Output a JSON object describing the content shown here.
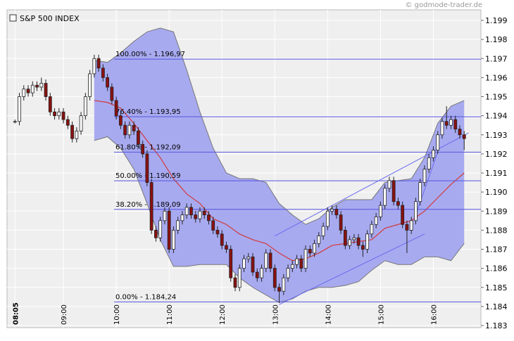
{
  "chart_data": {
    "type": "candlestick",
    "title": "S&P 500 INDEX",
    "watermark": "© godmode-trader.de",
    "ylim": [
      1.183,
      1.199
    ],
    "yticks": [
      1.183,
      1.184,
      1.185,
      1.186,
      1.187,
      1.188,
      1.189,
      {
        "value": 1.19,
        "label": "1.190"
      },
      1.191,
      1.192,
      1.193,
      1.194,
      1.195,
      1.196,
      1.197,
      1.198,
      1.199
    ],
    "xlim": [
      "07:56",
      "16:54"
    ],
    "xticks": [
      "08:05",
      "09:00",
      "10:00",
      "11:00",
      "12:00",
      "13:00",
      "14:00",
      "15:00",
      "16:00"
    ],
    "grid": true,
    "colors": {
      "up": "#ffffff",
      "down": "#8b1010",
      "band": "#a8aaf0",
      "ma": "#d03a3a",
      "fib": "#5555dd",
      "trend": "#6a6aee"
    },
    "x": [
      "08:05",
      "08:10",
      "08:15",
      "08:20",
      "08:25",
      "08:30",
      "08:35",
      "08:40",
      "08:45",
      "08:50",
      "08:55",
      "09:00",
      "09:05",
      "09:10",
      "09:15",
      "09:20",
      "09:25",
      "09:30",
      "09:35",
      "09:40",
      "09:45",
      "09:50",
      "09:55",
      "10:00",
      "10:05",
      "10:10",
      "10:15",
      "10:20",
      "10:25",
      "10:30",
      "10:35",
      "10:40",
      "10:45",
      "10:50",
      "10:55",
      "11:00",
      "11:05",
      "11:10",
      "11:15",
      "11:20",
      "11:25",
      "11:30",
      "11:35",
      "11:40",
      "11:45",
      "11:50",
      "11:55",
      "12:00",
      "12:05",
      "12:10",
      "12:15",
      "12:20",
      "12:25",
      "12:30",
      "12:35",
      "12:40",
      "12:45",
      "12:50",
      "12:55",
      "13:00",
      "13:05",
      "13:10",
      "13:15",
      "13:20",
      "13:25",
      "13:30",
      "13:35",
      "13:40",
      "13:45",
      "13:50",
      "13:55",
      "14:00",
      "14:05",
      "14:10",
      "14:15",
      "14:20",
      "14:25",
      "14:30",
      "14:35",
      "14:40",
      "14:45",
      "14:50",
      "14:55",
      "15:00",
      "15:05",
      "15:10",
      "15:15",
      "15:20",
      "15:25",
      "15:30",
      "15:35",
      "15:40",
      "15:45",
      "15:50",
      "15:55",
      "16:00",
      "16:05",
      "16:10",
      "16:15",
      "16:20",
      "16:25",
      "16:30",
      "16:35"
    ],
    "ohlc": [
      [
        1.1937,
        1.1938,
        1.1936,
        1.1937
      ],
      [
        1.1937,
        1.1952,
        1.1935,
        1.195
      ],
      [
        1.195,
        1.1956,
        1.1948,
        1.1954
      ],
      [
        1.1954,
        1.1956,
        1.195,
        1.1952
      ],
      [
        1.1952,
        1.1958,
        1.195,
        1.1956
      ],
      [
        1.1956,
        1.1958,
        1.1953,
        1.1955
      ],
      [
        1.1955,
        1.196,
        1.1953,
        1.1957
      ],
      [
        1.1957,
        1.1959,
        1.1948,
        1.195
      ],
      [
        1.195,
        1.1952,
        1.194,
        1.1942
      ],
      [
        1.1942,
        1.1944,
        1.1938,
        1.194
      ],
      [
        1.194,
        1.1944,
        1.1938,
        1.1942
      ],
      [
        1.1942,
        1.1944,
        1.1936,
        1.1938
      ],
      [
        1.1938,
        1.194,
        1.1933,
        1.1935
      ],
      [
        1.1935,
        1.1937,
        1.1926,
        1.1928
      ],
      [
        1.1928,
        1.1934,
        1.1926,
        1.1932
      ],
      [
        1.1932,
        1.1942,
        1.193,
        1.194
      ],
      [
        1.194,
        1.1952,
        1.1938,
        1.195
      ],
      [
        1.195,
        1.1964,
        1.1948,
        1.1962
      ],
      [
        1.1962,
        1.1972,
        1.196,
        1.197
      ],
      [
        1.197,
        1.1972,
        1.1963,
        1.1965
      ],
      [
        1.1965,
        1.1967,
        1.1958,
        1.196
      ],
      [
        1.196,
        1.1962,
        1.1953,
        1.1955
      ],
      [
        1.1955,
        1.1957,
        1.1946,
        1.1948
      ],
      [
        1.1948,
        1.195,
        1.1938,
        1.194
      ],
      [
        1.194,
        1.1942,
        1.1933,
        1.1935
      ],
      [
        1.1935,
        1.1937,
        1.1928,
        1.193
      ],
      [
        1.193,
        1.1937,
        1.1928,
        1.1935
      ],
      [
        1.1935,
        1.1937,
        1.193,
        1.1932
      ],
      [
        1.1932,
        1.1934,
        1.1923,
        1.1925
      ],
      [
        1.1925,
        1.1927,
        1.1918,
        1.192
      ],
      [
        1.192,
        1.1922,
        1.1903,
        1.1905
      ],
      [
        1.1905,
        1.1907,
        1.1878,
        1.188
      ],
      [
        1.188,
        1.1882,
        1.1874,
        1.1876
      ],
      [
        1.1876,
        1.1887,
        1.1874,
        1.1885
      ],
      [
        1.1885,
        1.1892,
        1.1883,
        1.189
      ],
      [
        1.189,
        1.1892,
        1.1868,
        1.187
      ],
      [
        1.187,
        1.1882,
        1.1868,
        1.188
      ],
      [
        1.188,
        1.1887,
        1.1878,
        1.1885
      ],
      [
        1.1885,
        1.189,
        1.1883,
        1.1888
      ],
      [
        1.1888,
        1.1894,
        1.1886,
        1.1892
      ],
      [
        1.1892,
        1.1894,
        1.1886,
        1.1888
      ],
      [
        1.1888,
        1.189,
        1.1884,
        1.1886
      ],
      [
        1.1886,
        1.1892,
        1.1884,
        1.189
      ],
      [
        1.189,
        1.1892,
        1.1886,
        1.1888
      ],
      [
        1.1888,
        1.189,
        1.1883,
        1.1885
      ],
      [
        1.1885,
        1.1887,
        1.1878,
        1.188
      ],
      [
        1.188,
        1.1882,
        1.1876,
        1.1878
      ],
      [
        1.1878,
        1.188,
        1.187,
        1.1872
      ],
      [
        1.1872,
        1.1874,
        1.1868,
        1.187
      ],
      [
        1.187,
        1.1872,
        1.1853,
        1.1855
      ],
      [
        1.1855,
        1.1857,
        1.1848,
        1.185
      ],
      [
        1.185,
        1.1862,
        1.1848,
        1.186
      ],
      [
        1.186,
        1.1867,
        1.1858,
        1.1865
      ],
      [
        1.1865,
        1.1868,
        1.1863,
        1.1866
      ],
      [
        1.1866,
        1.1868,
        1.1856,
        1.1858
      ],
      [
        1.1858,
        1.186,
        1.1853,
        1.1855
      ],
      [
        1.1855,
        1.1862,
        1.1853,
        1.186
      ],
      [
        1.186,
        1.187,
        1.1858,
        1.1868
      ],
      [
        1.1868,
        1.187,
        1.1858,
        1.186
      ],
      [
        1.186,
        1.1862,
        1.1848,
        1.185
      ],
      [
        1.185,
        1.1852,
        1.1842,
        1.1848
      ],
      [
        1.1848,
        1.1857,
        1.1846,
        1.1855
      ],
      [
        1.1855,
        1.1862,
        1.1853,
        1.186
      ],
      [
        1.186,
        1.1864,
        1.1858,
        1.1862
      ],
      [
        1.1862,
        1.1867,
        1.186,
        1.1865
      ],
      [
        1.1865,
        1.1867,
        1.1858,
        1.186
      ],
      [
        1.186,
        1.1872,
        1.1858,
        1.187
      ],
      [
        1.187,
        1.1872,
        1.1866,
        1.1868
      ],
      [
        1.1868,
        1.1875,
        1.1866,
        1.1873
      ],
      [
        1.1873,
        1.1879,
        1.1871,
        1.1877
      ],
      [
        1.1877,
        1.1884,
        1.1875,
        1.1882
      ],
      [
        1.1882,
        1.1892,
        1.188,
        1.189
      ],
      [
        1.189,
        1.1893,
        1.1888,
        1.1891
      ],
      [
        1.1891,
        1.1893,
        1.1886,
        1.1888
      ],
      [
        1.1888,
        1.189,
        1.1878,
        1.188
      ],
      [
        1.188,
        1.1882,
        1.187,
        1.1872
      ],
      [
        1.1872,
        1.1877,
        1.187,
        1.1875
      ],
      [
        1.1875,
        1.1878,
        1.1873,
        1.1876
      ],
      [
        1.1876,
        1.1878,
        1.187,
        1.1872
      ],
      [
        1.1872,
        1.1874,
        1.1866,
        1.187
      ],
      [
        1.187,
        1.188,
        1.1868,
        1.1878
      ],
      [
        1.1878,
        1.1885,
        1.1876,
        1.1883
      ],
      [
        1.1883,
        1.1889,
        1.1881,
        1.1887
      ],
      [
        1.1887,
        1.1895,
        1.1885,
        1.1893
      ],
      [
        1.1893,
        1.1904,
        1.1891,
        1.1902
      ],
      [
        1.1902,
        1.1908,
        1.19,
        1.1906
      ],
      [
        1.1906,
        1.1908,
        1.1893,
        1.1895
      ],
      [
        1.1895,
        1.1897,
        1.1891,
        1.1893
      ],
      [
        1.1893,
        1.1895,
        1.1881,
        1.1883
      ],
      [
        1.1883,
        1.1885,
        1.1868,
        1.188
      ],
      [
        1.188,
        1.1887,
        1.1878,
        1.1885
      ],
      [
        1.1885,
        1.1897,
        1.1883,
        1.1895
      ],
      [
        1.1895,
        1.1907,
        1.1893,
        1.1905
      ],
      [
        1.1905,
        1.1914,
        1.1903,
        1.1912
      ],
      [
        1.1912,
        1.192,
        1.191,
        1.1918
      ],
      [
        1.1918,
        1.1924,
        1.1916,
        1.1922
      ],
      [
        1.1922,
        1.1932,
        1.192,
        1.193
      ],
      [
        1.193,
        1.1939,
        1.1928,
        1.1937
      ],
      [
        1.1937,
        1.1945,
        1.1933,
        1.1935
      ],
      [
        1.1935,
        1.194,
        1.1933,
        1.1938
      ],
      [
        1.1938,
        1.194,
        1.1931,
        1.1933
      ],
      [
        1.1933,
        1.1935,
        1.1928,
        1.193
      ],
      [
        1.193,
        1.1932,
        1.1922,
        1.1928
      ]
    ],
    "band": {
      "x": [
        "09:35",
        "09:50",
        "10:05",
        "10:20",
        "10:35",
        "10:50",
        "11:05",
        "11:20",
        "11:35",
        "11:50",
        "12:05",
        "12:20",
        "12:35",
        "12:50",
        "13:05",
        "13:20",
        "13:35",
        "13:50",
        "14:05",
        "14:20",
        "14:35",
        "14:50",
        "15:05",
        "15:20",
        "15:35",
        "15:50",
        "16:05",
        "16:20",
        "16:35"
      ],
      "upper": [
        1.1969,
        1.1968,
        1.1973,
        1.1979,
        1.1984,
        1.1986,
        1.1984,
        1.1964,
        1.1942,
        1.1923,
        1.191,
        1.1907,
        1.1907,
        1.1905,
        1.1894,
        1.1888,
        1.1883,
        1.1886,
        1.1892,
        1.1896,
        1.1896,
        1.1896,
        1.1905,
        1.1906,
        1.1907,
        1.1918,
        1.1936,
        1.1945,
        1.1948
      ],
      "lower": [
        1.1927,
        1.1929,
        1.1923,
        1.1912,
        1.1894,
        1.1875,
        1.1861,
        1.1861,
        1.1862,
        1.1862,
        1.1862,
        1.1855,
        1.185,
        1.1846,
        1.1842,
        1.1844,
        1.1848,
        1.185,
        1.185,
        1.1851,
        1.1853,
        1.1859,
        1.1864,
        1.1862,
        1.1862,
        1.1866,
        1.1866,
        1.1864,
        1.1873
      ],
      "ma": [
        1.1948,
        1.1947,
        1.1944,
        1.1936,
        1.1927,
        1.1918,
        1.1907,
        1.1899,
        1.1894,
        1.1886,
        1.1883,
        1.1878,
        1.1875,
        1.1873,
        1.1868,
        1.1864,
        1.1865,
        1.1868,
        1.1872,
        1.1873,
        1.1874,
        1.1875,
        1.1881,
        1.1883,
        1.1885,
        1.189,
        1.1897,
        1.1904,
        1.191
      ]
    },
    "fib": [
      {
        "value": 1.19697,
        "label": "100.00% - 1.196,97"
      },
      {
        "value": 1.19395,
        "label": "76.40% - 1.193,95"
      },
      {
        "value": 1.19209,
        "label": "61.80% - 1.192,09"
      },
      {
        "value": 1.19059,
        "label": "50.00% - 1.190,59"
      },
      {
        "value": 1.18909,
        "label": "38.20% - 1.189,09"
      },
      {
        "value": 1.18424,
        "label": "0.00% - 1.184,24"
      }
    ],
    "trendlines": [
      {
        "x": [
          "13:00",
          "16:40"
        ],
        "y": [
          1.1877,
          1.1931
        ]
      },
      {
        "x": [
          "13:05",
          "15:50"
        ],
        "y": [
          1.1841,
          1.1878
        ]
      },
      {
        "x": [
          "15:40",
          "16:05"
        ],
        "y": [
          1.1888,
          1.1921
        ]
      }
    ]
  }
}
